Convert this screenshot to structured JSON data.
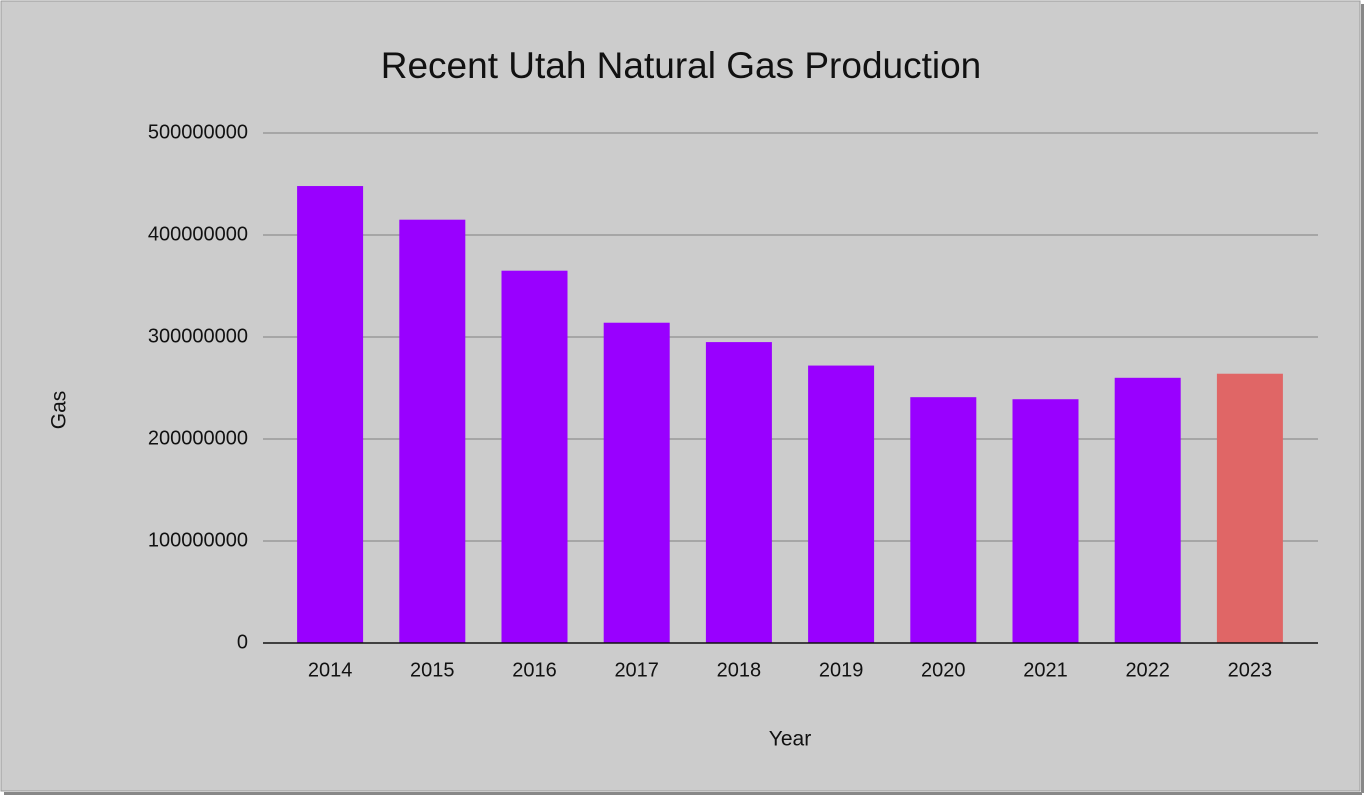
{
  "chart_data": {
    "type": "bar",
    "title": "Recent Utah Natural Gas Production",
    "x_label": "Year",
    "y_label": "Gas",
    "categories": [
      "2014",
      "2015",
      "2016",
      "2017",
      "2018",
      "2019",
      "2020",
      "2021",
      "2022",
      "2023"
    ],
    "values": [
      448000000,
      415000000,
      365000000,
      314000000,
      295000000,
      272000000,
      241000000,
      239000000,
      260000000,
      264000000
    ],
    "colors": [
      "#9900ff",
      "#9900ff",
      "#9900ff",
      "#9900ff",
      "#9900ff",
      "#9900ff",
      "#9900ff",
      "#9900ff",
      "#9900ff",
      "#e06666"
    ],
    "ylim": [
      0,
      500000000
    ],
    "yticks": [
      0,
      100000000,
      200000000,
      300000000,
      400000000,
      500000000
    ],
    "grid": true
  }
}
